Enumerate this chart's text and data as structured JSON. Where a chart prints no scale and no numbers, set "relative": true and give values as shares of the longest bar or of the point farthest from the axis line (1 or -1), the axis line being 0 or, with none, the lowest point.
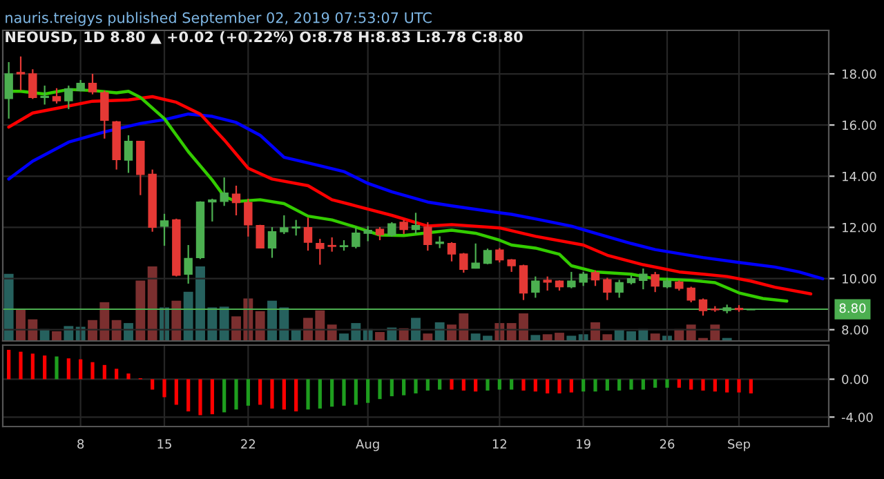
{
  "chart_data": [
    {
      "type": "candlestick",
      "title": "nauris.treigys published September 02, 2019 07:53:07 UTC",
      "subtitle": "NEOUSD, 1D 8.80 ▲ +0.02 (+0.22%) O:8.78 H:8.83 L:8.78 C:8.80",
      "x": [
        "2019-07-02",
        "2019-07-03",
        "2019-07-04",
        "2019-07-05",
        "2019-07-06",
        "2019-07-07",
        "2019-07-08",
        "2019-07-09",
        "2019-07-10",
        "2019-07-11",
        "2019-07-12",
        "2019-07-13",
        "2019-07-14",
        "2019-07-15",
        "2019-07-16",
        "2019-07-17",
        "2019-07-18",
        "2019-07-19",
        "2019-07-20",
        "2019-07-21",
        "2019-07-22",
        "2019-07-23",
        "2019-07-24",
        "2019-07-25",
        "2019-07-26",
        "2019-07-27",
        "2019-07-28",
        "2019-07-29",
        "2019-07-30",
        "2019-07-31",
        "2019-08-01",
        "2019-08-02",
        "2019-08-03",
        "2019-08-04",
        "2019-08-05",
        "2019-08-06",
        "2019-08-07",
        "2019-08-08",
        "2019-08-09",
        "2019-08-10",
        "2019-08-11",
        "2019-08-12",
        "2019-08-13",
        "2019-08-14",
        "2019-08-15",
        "2019-08-16",
        "2019-08-17",
        "2019-08-18",
        "2019-08-19",
        "2019-08-20",
        "2019-08-21",
        "2019-08-22",
        "2019-08-23",
        "2019-08-24",
        "2019-08-25",
        "2019-08-26",
        "2019-08-27",
        "2019-08-28",
        "2019-08-29",
        "2019-08-30",
        "2019-08-31",
        "2019-09-01",
        "2019-09-02"
      ],
      "ohlc": [
        [
          17.04,
          18.46,
          16.25,
          18.0
        ],
        [
          18.05,
          18.68,
          17.35,
          18.0
        ],
        [
          18.0,
          18.18,
          17.02,
          17.08
        ],
        [
          17.08,
          17.54,
          16.8,
          17.12
        ],
        [
          17.11,
          17.44,
          16.84,
          16.95
        ],
        [
          16.95,
          17.54,
          16.62,
          17.41
        ],
        [
          17.35,
          17.76,
          17.32,
          17.63
        ],
        [
          17.63,
          18.0,
          17.2,
          17.3
        ],
        [
          17.26,
          17.35,
          15.47,
          16.19
        ],
        [
          16.12,
          16.16,
          14.26,
          14.65
        ],
        [
          14.63,
          15.6,
          14.13,
          15.36
        ],
        [
          15.36,
          15.36,
          13.26,
          14.07
        ],
        [
          14.07,
          14.26,
          11.83,
          12.01
        ],
        [
          12.05,
          12.53,
          11.28,
          12.25
        ],
        [
          12.29,
          12.34,
          10.08,
          10.13
        ],
        [
          10.17,
          11.31,
          9.8,
          10.78
        ],
        [
          10.82,
          13.02,
          10.76,
          12.99
        ],
        [
          13.0,
          13.12,
          12.23,
          13.07
        ],
        [
          13.02,
          13.95,
          12.84,
          13.34
        ],
        [
          13.3,
          13.63,
          12.47,
          12.97
        ],
        [
          12.97,
          13.12,
          11.64,
          12.1
        ],
        [
          12.07,
          12.1,
          11.18,
          11.2
        ],
        [
          11.2,
          12.01,
          10.81,
          11.83
        ],
        [
          11.83,
          12.47,
          11.74,
          11.98
        ],
        [
          11.98,
          12.29,
          11.68,
          12.01
        ],
        [
          11.99,
          12.38,
          11.09,
          11.42
        ],
        [
          11.37,
          11.55,
          10.54,
          11.18
        ],
        [
          11.29,
          11.61,
          11.05,
          11.26
        ],
        [
          11.25,
          11.5,
          11.09,
          11.28
        ],
        [
          11.26,
          12.01,
          11.18,
          11.77
        ],
        [
          11.77,
          12.05,
          11.46,
          11.88
        ],
        [
          11.92,
          12.01,
          11.5,
          11.72
        ],
        [
          11.7,
          12.2,
          11.64,
          12.14
        ],
        [
          12.2,
          12.29,
          11.74,
          11.92
        ],
        [
          11.92,
          12.57,
          11.74,
          12.07
        ],
        [
          12.01,
          12.2,
          11.09,
          11.33
        ],
        [
          11.37,
          11.65,
          11.19,
          11.42
        ],
        [
          11.37,
          11.42,
          10.67,
          10.96
        ],
        [
          10.96,
          11.0,
          10.23,
          10.36
        ],
        [
          10.41,
          11.37,
          10.39,
          10.6
        ],
        [
          10.6,
          11.17,
          10.56,
          11.09
        ],
        [
          11.11,
          11.19,
          10.63,
          10.73
        ],
        [
          10.73,
          10.76,
          10.26,
          10.5
        ],
        [
          10.5,
          10.54,
          9.16,
          9.44
        ],
        [
          9.47,
          10.08,
          9.25,
          9.9
        ],
        [
          9.93,
          10.08,
          9.53,
          9.86
        ],
        [
          9.9,
          9.93,
          9.53,
          9.68
        ],
        [
          9.68,
          10.26,
          9.62,
          9.9
        ],
        [
          9.86,
          10.26,
          9.71,
          10.17
        ],
        [
          10.23,
          10.32,
          9.71,
          9.95
        ],
        [
          9.95,
          10.03,
          9.16,
          9.47
        ],
        [
          9.47,
          9.95,
          9.25,
          9.84
        ],
        [
          9.84,
          10.12,
          9.77,
          9.99
        ],
        [
          9.93,
          10.39,
          9.58,
          10.17
        ],
        [
          10.15,
          10.26,
          9.47,
          9.71
        ],
        [
          9.68,
          10.03,
          9.62,
          9.9
        ],
        [
          9.86,
          9.93,
          9.53,
          9.62
        ],
        [
          9.62,
          9.68,
          9.07,
          9.16
        ],
        [
          9.16,
          9.22,
          8.55,
          8.75
        ],
        [
          8.8,
          8.92,
          8.7,
          8.78
        ],
        [
          8.75,
          8.98,
          8.64,
          8.85
        ],
        [
          8.83,
          8.96,
          8.7,
          8.79
        ],
        [
          8.78,
          8.83,
          8.78,
          8.8
        ]
      ],
      "series": [
        {
          "type": "line",
          "color": "#0000ff",
          "x": [
            "2019-07-02",
            "2019-07-04",
            "2019-07-07",
            "2019-07-10",
            "2019-07-13",
            "2019-07-15",
            "2019-07-17",
            "2019-07-19",
            "2019-07-21",
            "2019-07-23",
            "2019-07-25",
            "2019-07-28",
            "2019-07-30",
            "2019-08-01",
            "2019-08-03",
            "2019-08-06",
            "2019-08-08",
            "2019-08-12",
            "2019-08-13",
            "2019-08-15",
            "2019-08-18",
            "2019-08-20",
            "2019-08-23",
            "2019-08-25",
            "2019-08-29",
            "2019-09-01",
            "2019-09-04",
            "2019-09-06",
            "2019-09-08"
          ],
          "values": [
            13.89,
            14.59,
            15.33,
            15.73,
            16.06,
            16.21,
            16.43,
            16.34,
            16.1,
            15.6,
            14.74,
            14.41,
            14.18,
            13.72,
            13.39,
            12.99,
            12.84,
            12.57,
            12.51,
            12.33,
            12.05,
            11.77,
            11.37,
            11.13,
            10.82,
            10.63,
            10.45,
            10.26,
            9.99
          ]
        },
        {
          "type": "line",
          "color": "#ff0000",
          "x": [
            "2019-07-02",
            "2019-07-04",
            "2019-07-06",
            "2019-07-09",
            "2019-07-12",
            "2019-07-14",
            "2019-07-16",
            "2019-07-18",
            "2019-07-20",
            "2019-07-22",
            "2019-07-24",
            "2019-07-27",
            "2019-07-29",
            "2019-07-31",
            "2019-08-03",
            "2019-08-06",
            "2019-08-08",
            "2019-08-12",
            "2019-08-15",
            "2019-08-19",
            "2019-08-21",
            "2019-08-24",
            "2019-08-27",
            "2019-08-31",
            "2019-09-02",
            "2019-09-04",
            "2019-09-07"
          ],
          "values": [
            15.92,
            16.47,
            16.65,
            16.93,
            16.98,
            17.11,
            16.89,
            16.43,
            15.42,
            14.31,
            13.89,
            13.63,
            13.08,
            12.84,
            12.47,
            12.05,
            12.11,
            11.98,
            11.65,
            11.31,
            10.91,
            10.54,
            10.26,
            10.08,
            9.9,
            9.66,
            9.4
          ]
        },
        {
          "type": "line",
          "color": "#33cc00",
          "x": [
            "2019-07-02",
            "2019-07-03",
            "2019-07-05",
            "2019-07-07",
            "2019-07-09",
            "2019-07-11",
            "2019-07-12",
            "2019-07-13",
            "2019-07-15",
            "2019-07-17",
            "2019-07-19",
            "2019-07-20",
            "2019-07-21",
            "2019-07-23",
            "2019-07-25",
            "2019-07-27",
            "2019-07-29",
            "2019-07-31",
            "2019-08-02",
            "2019-08-04",
            "2019-08-06",
            "2019-08-08",
            "2019-08-10",
            "2019-08-12",
            "2019-08-13",
            "2019-08-15",
            "2019-08-17",
            "2019-08-18",
            "2019-08-20",
            "2019-08-23",
            "2019-08-25",
            "2019-08-28",
            "2019-08-30",
            "2019-09-01",
            "2019-09-03",
            "2019-09-05"
          ],
          "values": [
            17.32,
            17.32,
            17.21,
            17.39,
            17.35,
            17.26,
            17.32,
            17.08,
            16.25,
            14.96,
            13.85,
            13.21,
            13.01,
            13.08,
            12.93,
            12.44,
            12.29,
            12.01,
            11.7,
            11.68,
            11.79,
            11.89,
            11.77,
            11.5,
            11.31,
            11.19,
            10.95,
            10.5,
            10.26,
            10.17,
            9.99,
            9.93,
            9.84,
            9.44,
            9.22,
            9.12
          ]
        }
      ],
      "ref_lines": [
        {
          "axis": "y",
          "value": 8.8,
          "label": "8.80",
          "color": "#4caf50"
        }
      ],
      "xlim": [
        "2019-07-01T12:00",
        "2019-09-08T12:00"
      ],
      "ylim": [
        7.56,
        19.7
      ],
      "yticks": [
        {
          "value": 8,
          "label": "8.00"
        },
        {
          "value": 10,
          "label": "10.00"
        },
        {
          "value": 12,
          "label": "12.00"
        },
        {
          "value": 14,
          "label": "14.00"
        },
        {
          "value": 16,
          "label": "16.00"
        },
        {
          "value": 18,
          "label": "18.00"
        }
      ],
      "xticks": [
        "2019-07-08",
        "2019-07-15",
        "2019-07-22",
        "2019-08-01",
        "2019-08-12",
        "2019-08-19",
        "2019-08-26",
        "2019-09-01"
      ],
      "grid": true,
      "tick_labels": "y"
    },
    {
      "type": "bar",
      "relative": true,
      "tick_labels": false,
      "xlim": [
        "2019-07-01T12:00",
        "2019-09-08T12:00"
      ],
      "x": [
        "2019-07-02",
        "2019-07-03",
        "2019-07-04",
        "2019-07-05",
        "2019-07-06",
        "2019-07-07",
        "2019-07-08",
        "2019-07-09",
        "2019-07-10",
        "2019-07-11",
        "2019-07-12",
        "2019-07-13",
        "2019-07-14",
        "2019-07-15",
        "2019-07-16",
        "2019-07-17",
        "2019-07-18",
        "2019-07-19",
        "2019-07-20",
        "2019-07-21",
        "2019-07-22",
        "2019-07-23",
        "2019-07-24",
        "2019-07-25",
        "2019-07-26",
        "2019-07-27",
        "2019-07-28",
        "2019-07-29",
        "2019-07-30",
        "2019-07-31",
        "2019-08-01",
        "2019-08-02",
        "2019-08-03",
        "2019-08-04",
        "2019-08-05",
        "2019-08-06",
        "2019-08-07",
        "2019-08-08",
        "2019-08-09",
        "2019-08-10",
        "2019-08-11",
        "2019-08-12",
        "2019-08-13",
        "2019-08-14",
        "2019-08-15",
        "2019-08-16",
        "2019-08-17",
        "2019-08-18",
        "2019-08-19",
        "2019-08-20",
        "2019-08-21",
        "2019-08-22",
        "2019-08-23",
        "2019-08-24",
        "2019-08-25",
        "2019-08-26",
        "2019-08-27",
        "2019-08-28",
        "2019-08-29",
        "2019-08-30",
        "2019-08-31"
      ],
      "values": [
        0.9,
        0.43,
        0.29,
        0.16,
        0.13,
        0.2,
        0.19,
        0.28,
        0.52,
        0.28,
        0.24,
        0.81,
        1,
        0.45,
        0.54,
        0.66,
        1,
        0.45,
        0.46,
        0.33,
        0.57,
        0.4,
        0.54,
        0.45,
        0.15,
        0.31,
        0.41,
        0.22,
        0.1,
        0.24,
        0.16,
        0.12,
        0.18,
        0.17,
        0.31,
        0.1,
        0.25,
        0.22,
        0.37,
        0.1,
        0.07,
        0.24,
        0.24,
        0.37,
        0.08,
        0.09,
        0.11,
        0.07,
        0.09,
        0.25,
        0.09,
        0.15,
        0.13,
        0.16,
        0.1,
        0.07,
        0.16,
        0.22,
        0.04,
        0.22,
        0.04
      ],
      "colors": [
        "#26615e",
        "#7b2f2f",
        "#7b2f2f",
        "#26615e",
        "#7b2f2f",
        "#26615e",
        "#26615e",
        "#7b2f2f",
        "#7b2f2f",
        "#7b2f2f",
        "#26615e",
        "#7b2f2f",
        "#7b2f2f",
        "#26615e",
        "#7b2f2f",
        "#26615e",
        "#26615e",
        "#26615e",
        "#26615e",
        "#7b2f2f",
        "#7b2f2f",
        "#7b2f2f",
        "#26615e",
        "#26615e",
        "#26615e",
        "#7b2f2f",
        "#7b2f2f",
        "#7b2f2f",
        "#26615e",
        "#26615e",
        "#26615e",
        "#7b2f2f",
        "#26615e",
        "#7b2f2f",
        "#26615e",
        "#7b2f2f",
        "#26615e",
        "#7b2f2f",
        "#7b2f2f",
        "#26615e",
        "#26615e",
        "#7b2f2f",
        "#7b2f2f",
        "#7b2f2f",
        "#26615e",
        "#7b2f2f",
        "#7b2f2f",
        "#26615e",
        "#26615e",
        "#7b2f2f",
        "#7b2f2f",
        "#26615e",
        "#26615e",
        "#26615e",
        "#7b2f2f",
        "#26615e",
        "#7b2f2f",
        "#7b2f2f",
        "#7b2f2f",
        "#7b2f2f",
        "#26615e"
      ]
    },
    {
      "type": "bar",
      "xlim": [
        "2019-07-01T12:00",
        "2019-09-08T12:00"
      ],
      "ylim": [
        -5.0,
        3.6
      ],
      "yticks": [
        {
          "value": 0,
          "label": "0.00"
        },
        {
          "value": -4,
          "label": "-4.00"
        }
      ],
      "xticks": [
        {
          "value": "2019-07-08",
          "label": "8"
        },
        {
          "value": "2019-07-15",
          "label": "15"
        },
        {
          "value": "2019-07-22",
          "label": "22"
        },
        {
          "value": "2019-08-01",
          "label": "Aug"
        },
        {
          "value": "2019-08-12",
          "label": "12"
        },
        {
          "value": "2019-08-19",
          "label": "19"
        },
        {
          "value": "2019-08-26",
          "label": "26"
        },
        {
          "value": "2019-09-01",
          "label": "Sep"
        }
      ],
      "grid": true,
      "x": [
        "2019-07-02",
        "2019-07-03",
        "2019-07-04",
        "2019-07-05",
        "2019-07-06",
        "2019-07-07",
        "2019-07-08",
        "2019-07-09",
        "2019-07-10",
        "2019-07-11",
        "2019-07-12",
        "2019-07-13",
        "2019-07-14",
        "2019-07-15",
        "2019-07-16",
        "2019-07-17",
        "2019-07-18",
        "2019-07-19",
        "2019-07-20",
        "2019-07-21",
        "2019-07-22",
        "2019-07-23",
        "2019-07-24",
        "2019-07-25",
        "2019-07-26",
        "2019-07-27",
        "2019-07-28",
        "2019-07-29",
        "2019-07-30",
        "2019-07-31",
        "2019-08-01",
        "2019-08-02",
        "2019-08-03",
        "2019-08-04",
        "2019-08-05",
        "2019-08-06",
        "2019-08-07",
        "2019-08-08",
        "2019-08-09",
        "2019-08-10",
        "2019-08-11",
        "2019-08-12",
        "2019-08-13",
        "2019-08-14",
        "2019-08-15",
        "2019-08-16",
        "2019-08-17",
        "2019-08-18",
        "2019-08-19",
        "2019-08-20",
        "2019-08-21",
        "2019-08-22",
        "2019-08-23",
        "2019-08-24",
        "2019-08-25",
        "2019-08-26",
        "2019-08-27",
        "2019-08-28",
        "2019-08-29",
        "2019-08-30",
        "2019-08-31",
        "2019-09-01",
        "2019-09-02"
      ],
      "values": [
        3.1,
        2.9,
        2.7,
        2.5,
        2.4,
        2.2,
        2.1,
        1.8,
        1.5,
        1.1,
        0.6,
        0.1,
        -1.1,
        -1.9,
        -2.7,
        -3.4,
        -3.8,
        -3.7,
        -3.5,
        -3.2,
        -2.8,
        -2.7,
        -3.1,
        -3.2,
        -3.4,
        -3.2,
        -3.1,
        -2.9,
        -2.8,
        -2.7,
        -2.5,
        -2.1,
        -1.8,
        -1.7,
        -1.5,
        -1.2,
        -1.1,
        -1.1,
        -1.2,
        -1.3,
        -1.2,
        -1.1,
        -1.1,
        -1.2,
        -1.3,
        -1.5,
        -1.5,
        -1.4,
        -1.3,
        -1.3,
        -1.2,
        -1.2,
        -1.1,
        -1.1,
        -0.9,
        -0.9,
        -0.9,
        -1.1,
        -1.2,
        -1.3,
        -1.4,
        -1.4,
        -1.5
      ],
      "colors": [
        "#ff0000",
        "#ff0000",
        "#ff0000",
        "#ff0000",
        "#1e9e1e",
        "#ff0000",
        "#ff0000",
        "#ff0000",
        "#ff0000",
        "#ff0000",
        "#ff0000",
        "#ff0000",
        "#ff0000",
        "#ff0000",
        "#ff0000",
        "#ff0000",
        "#ff0000",
        "#ff0000",
        "#1e9e1e",
        "#1e9e1e",
        "#1e9e1e",
        "#ff0000",
        "#ff0000",
        "#ff0000",
        "#ff0000",
        "#1e9e1e",
        "#1e9e1e",
        "#1e9e1e",
        "#1e9e1e",
        "#1e9e1e",
        "#1e9e1e",
        "#1e9e1e",
        "#1e9e1e",
        "#1e9e1e",
        "#1e9e1e",
        "#1e9e1e",
        "#1e9e1e",
        "#ff0000",
        "#ff0000",
        "#ff0000",
        "#1e9e1e",
        "#1e9e1e",
        "#1e9e1e",
        "#ff0000",
        "#ff0000",
        "#ff0000",
        "#ff0000",
        "#ff0000",
        "#1e9e1e",
        "#1e9e1e",
        "#1e9e1e",
        "#1e9e1e",
        "#1e9e1e",
        "#1e9e1e",
        "#1e9e1e",
        "#1e9e1e",
        "#ff0000",
        "#ff0000",
        "#ff0000",
        "#ff0000",
        "#ff0000",
        "#ff0000",
        "#ff0000"
      ]
    }
  ]
}
